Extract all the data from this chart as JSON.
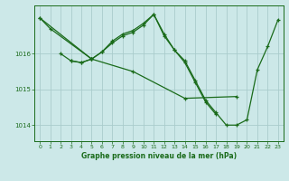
{
  "title": "Graphe pression niveau de la mer (hPa)",
  "background_color": "#cce8e8",
  "grid_color": "#aacccc",
  "line_color": "#1a6b1a",
  "xlim": [
    -0.5,
    23.5
  ],
  "ylim": [
    1013.55,
    1017.35
  ],
  "yticks": [
    1014,
    1015,
    1016
  ],
  "xticks": [
    0,
    1,
    2,
    3,
    4,
    5,
    6,
    7,
    8,
    9,
    10,
    11,
    12,
    13,
    14,
    15,
    16,
    17,
    18,
    19,
    20,
    21,
    22,
    23
  ],
  "series": [
    {
      "x": [
        0,
        1,
        5,
        6,
        7,
        8,
        9,
        10,
        11,
        12,
        13,
        14,
        15,
        16,
        17,
        18,
        19,
        20,
        21,
        22,
        23
      ],
      "y": [
        1017.0,
        1016.7,
        1015.85,
        1016.05,
        1016.35,
        1016.55,
        1016.65,
        1016.85,
        1017.1,
        1016.55,
        1016.1,
        1015.8,
        1015.25,
        1014.7,
        1014.35,
        1014.0,
        1014.0,
        1014.15,
        1015.55,
        1016.2,
        1016.95
      ]
    },
    {
      "x": [
        0,
        5,
        9,
        14,
        19
      ],
      "y": [
        1017.0,
        1015.85,
        1015.5,
        1014.75,
        1014.8
      ]
    },
    {
      "x": [
        2,
        3,
        4,
        5
      ],
      "y": [
        1016.0,
        1015.8,
        1015.75,
        1015.85
      ]
    },
    {
      "x": [
        3,
        4,
        5,
        6,
        7,
        8,
        9,
        10,
        11,
        12,
        13,
        14,
        15,
        16,
        17
      ],
      "y": [
        1015.8,
        1015.75,
        1015.85,
        1016.05,
        1016.3,
        1016.5,
        1016.6,
        1016.8,
        1017.1,
        1016.5,
        1016.1,
        1015.75,
        1015.2,
        1014.65,
        1014.3
      ]
    }
  ]
}
